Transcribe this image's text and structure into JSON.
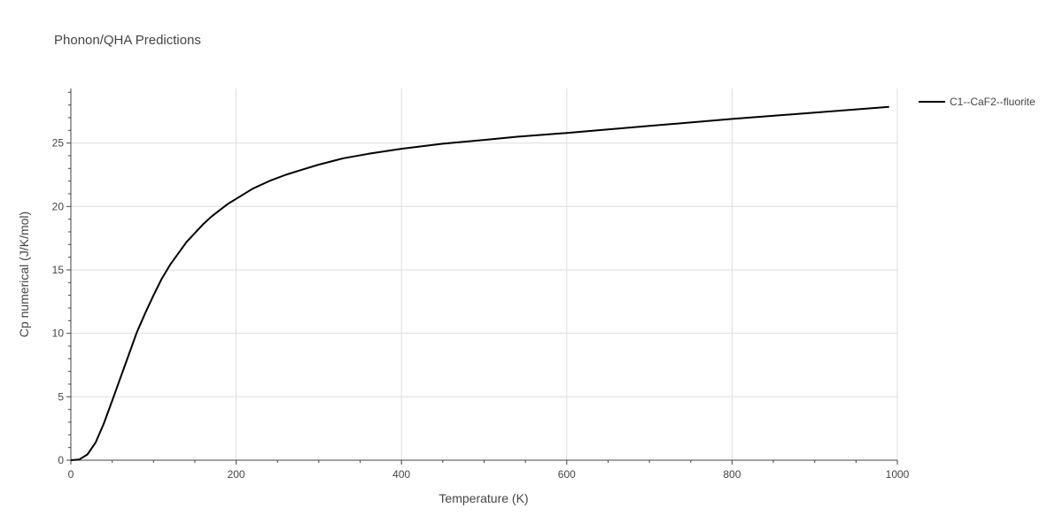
{
  "chart_data": {
    "type": "line",
    "title": "Phonon/QHA Predictions",
    "xlabel": "Temperature (K)",
    "ylabel": "Cp numerical (J/K/mol)",
    "xlim": [
      0,
      1000
    ],
    "ylim": [
      0,
      29.3
    ],
    "xticks": [
      0,
      200,
      400,
      600,
      800,
      1000
    ],
    "xtick_labels": [
      "0",
      "200",
      "400",
      "600",
      "800",
      "1000"
    ],
    "yticks": [
      0,
      5,
      10,
      15,
      20,
      25
    ],
    "ytick_labels": [
      "0",
      "5",
      "10",
      "15",
      "20",
      "25"
    ],
    "grid": true,
    "legend_position": "top-right, outside plot",
    "series": [
      {
        "name": "C1--CaF2--fluorite",
        "color": "#000000",
        "x": [
          0,
          10,
          20,
          30,
          40,
          50,
          60,
          70,
          80,
          90,
          100,
          110,
          120,
          130,
          140,
          150,
          160,
          170,
          180,
          190,
          200,
          220,
          240,
          260,
          280,
          300,
          330,
          360,
          400,
          450,
          500,
          540,
          600,
          700,
          800,
          900,
          990
        ],
        "y": [
          0,
          0.05,
          0.45,
          1.4,
          2.9,
          4.7,
          6.5,
          8.3,
          10.1,
          11.6,
          13.0,
          14.3,
          15.4,
          16.3,
          17.2,
          17.9,
          18.6,
          19.2,
          19.7,
          20.2,
          20.6,
          21.4,
          22.0,
          22.5,
          22.9,
          23.3,
          23.8,
          24.15,
          24.55,
          24.95,
          25.25,
          25.5,
          25.8,
          26.35,
          26.9,
          27.4,
          27.85
        ]
      }
    ]
  }
}
